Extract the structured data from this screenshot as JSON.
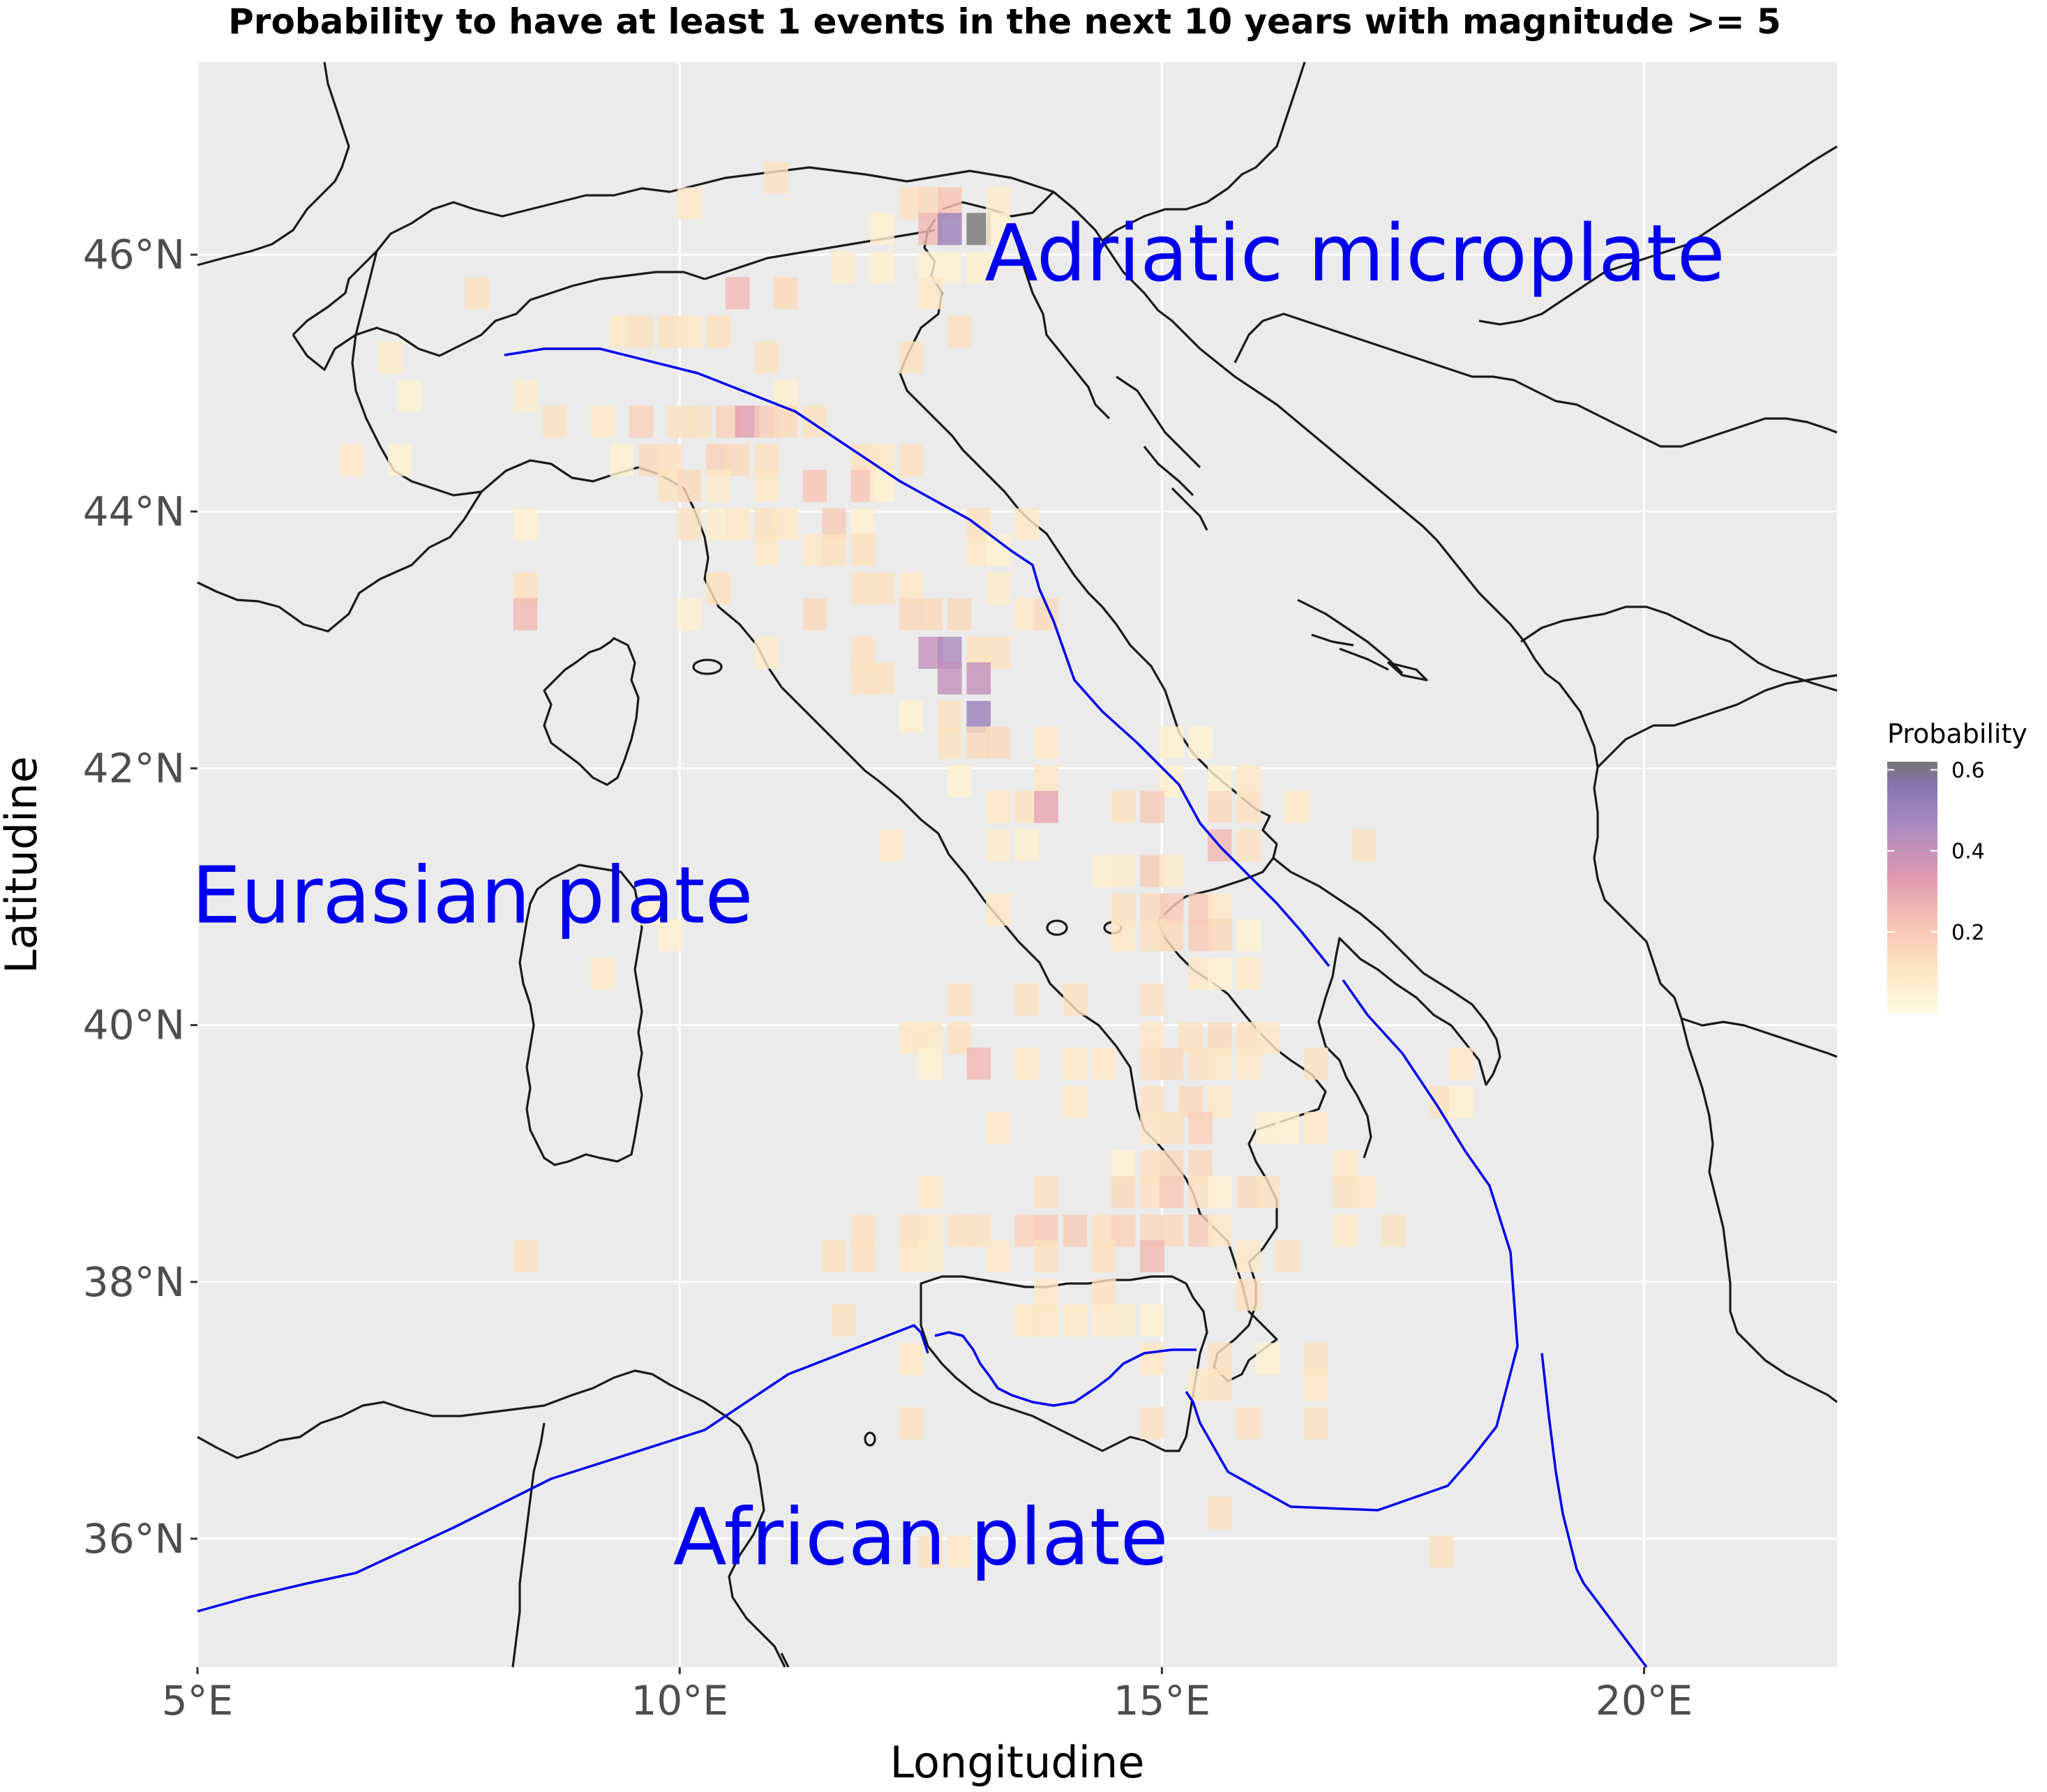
{
  "title": "Probability to have at least  1 events in the next  10 years with magnitude >= 5",
  "colors": {
    "panel_bg": "#ebebeb",
    "grid": "#ffffff",
    "coast": "#1a1a1a",
    "plate_boundary": "#0000ee",
    "plate_label": "#0000ee"
  },
  "axes": {
    "x_title": "Longitudine",
    "y_title": "Latitudine",
    "x_ticks": [
      {
        "value": 5,
        "label": "5°E"
      },
      {
        "value": 10,
        "label": "10°E"
      },
      {
        "value": 15,
        "label": "15°E"
      },
      {
        "value": 20,
        "label": "20°E"
      }
    ],
    "y_ticks": [
      {
        "value": 36,
        "label": "36°N"
      },
      {
        "value": 38,
        "label": "38°N"
      },
      {
        "value": 40,
        "label": "40°N"
      },
      {
        "value": 42,
        "label": "42°N"
      },
      {
        "value": 44,
        "label": "44°N"
      },
      {
        "value": 46,
        "label": "46°N"
      }
    ]
  },
  "legend": {
    "title": "Probability",
    "ticks": [
      {
        "value": 0.2,
        "label": "0.2"
      },
      {
        "value": 0.4,
        "label": "0.4"
      },
      {
        "value": 0.6,
        "label": "0.6"
      }
    ],
    "range": [
      0.0,
      0.62
    ]
  },
  "plate_labels": [
    {
      "text": "Adriatic microplate",
      "lon": 17.0,
      "lat": 45.8
    },
    {
      "text": "Eurasian plate",
      "lon": 7.85,
      "lat": 40.8
    },
    {
      "text": "African plate",
      "lon": 12.5,
      "lat": 35.8
    }
  ],
  "chart_data": {
    "type": "heatmap",
    "title": "Probability to have at least  1 events in the next  10 years with magnitude >= 5",
    "xlabel": "Longitudine",
    "ylabel": "Latitudine",
    "xlim": [
      5.0,
      22.0
    ],
    "ylim": [
      35.0,
      47.5
    ],
    "grid": true,
    "cell_size_deg": 0.25,
    "legend": "right",
    "colorbar": {
      "title": "Probability",
      "min": 0.0,
      "max": 0.62
    },
    "cells": [
      [
        11.0,
        46.6,
        0.12
      ],
      [
        10.1,
        46.4,
        0.1
      ],
      [
        12.4,
        46.4,
        0.12
      ],
      [
        12.6,
        46.4,
        0.15
      ],
      [
        12.8,
        46.4,
        0.22
      ],
      [
        13.3,
        46.4,
        0.08
      ],
      [
        12.1,
        46.2,
        0.05
      ],
      [
        12.6,
        46.2,
        0.25
      ],
      [
        12.8,
        46.2,
        0.5
      ],
      [
        13.1,
        46.2,
        0.62
      ],
      [
        13.3,
        46.2,
        0.05
      ],
      [
        11.7,
        45.9,
        0.08
      ],
      [
        12.1,
        45.9,
        0.06
      ],
      [
        12.6,
        45.9,
        0.05
      ],
      [
        12.8,
        45.9,
        0.05
      ],
      [
        13.1,
        45.9,
        0.06
      ],
      [
        7.9,
        45.7,
        0.12
      ],
      [
        10.6,
        45.7,
        0.25
      ],
      [
        11.1,
        45.7,
        0.15
      ],
      [
        12.6,
        45.7,
        0.1
      ],
      [
        9.4,
        45.4,
        0.1
      ],
      [
        9.6,
        45.4,
        0.12
      ],
      [
        9.9,
        45.4,
        0.12
      ],
      [
        10.1,
        45.4,
        0.1
      ],
      [
        10.4,
        45.4,
        0.12
      ],
      [
        12.9,
        45.4,
        0.12
      ],
      [
        7.0,
        45.2,
        0.08
      ],
      [
        10.9,
        45.2,
        0.12
      ],
      [
        12.4,
        45.2,
        0.12
      ],
      [
        7.2,
        44.9,
        0.05
      ],
      [
        8.4,
        44.9,
        0.08
      ],
      [
        11.1,
        44.9,
        0.06
      ],
      [
        8.7,
        44.7,
        0.12
      ],
      [
        9.2,
        44.7,
        0.1
      ],
      [
        9.6,
        44.7,
        0.18
      ],
      [
        10.0,
        44.7,
        0.12
      ],
      [
        10.2,
        44.7,
        0.12
      ],
      [
        10.5,
        44.7,
        0.18
      ],
      [
        10.7,
        44.7,
        0.32
      ],
      [
        10.9,
        44.7,
        0.2
      ],
      [
        11.1,
        44.7,
        0.15
      ],
      [
        11.4,
        44.7,
        0.12
      ],
      [
        6.6,
        44.4,
        0.1
      ],
      [
        7.1,
        44.4,
        0.05
      ],
      [
        9.4,
        44.4,
        0.05
      ],
      [
        9.7,
        44.4,
        0.15
      ],
      [
        9.9,
        44.4,
        0.12
      ],
      [
        10.4,
        44.4,
        0.18
      ],
      [
        10.6,
        44.4,
        0.15
      ],
      [
        10.9,
        44.4,
        0.12
      ],
      [
        11.9,
        44.4,
        0.12
      ],
      [
        12.1,
        44.4,
        0.1
      ],
      [
        12.4,
        44.4,
        0.12
      ],
      [
        9.9,
        44.2,
        0.12
      ],
      [
        10.1,
        44.2,
        0.15
      ],
      [
        10.4,
        44.2,
        0.08
      ],
      [
        10.9,
        44.2,
        0.1
      ],
      [
        11.4,
        44.2,
        0.22
      ],
      [
        11.9,
        44.2,
        0.22
      ],
      [
        12.1,
        44.2,
        0.05
      ],
      [
        8.4,
        43.9,
        0.05
      ],
      [
        10.1,
        43.9,
        0.12
      ],
      [
        10.4,
        43.9,
        0.08
      ],
      [
        10.6,
        43.9,
        0.1
      ],
      [
        10.9,
        43.9,
        0.12
      ],
      [
        11.1,
        43.9,
        0.1
      ],
      [
        11.6,
        43.9,
        0.2
      ],
      [
        11.9,
        43.9,
        0.05
      ],
      [
        13.1,
        43.9,
        0.12
      ],
      [
        13.6,
        43.9,
        0.1
      ],
      [
        10.9,
        43.7,
        0.1
      ],
      [
        11.4,
        43.7,
        0.1
      ],
      [
        11.6,
        43.7,
        0.12
      ],
      [
        11.9,
        43.7,
        0.12
      ],
      [
        13.1,
        43.7,
        0.1
      ],
      [
        13.3,
        43.7,
        0.05
      ],
      [
        8.4,
        43.4,
        0.12
      ],
      [
        10.4,
        43.4,
        0.12
      ],
      [
        11.9,
        43.4,
        0.12
      ],
      [
        12.1,
        43.4,
        0.12
      ],
      [
        12.4,
        43.4,
        0.1
      ],
      [
        13.3,
        43.4,
        0.08
      ],
      [
        8.4,
        43.2,
        0.25
      ],
      [
        10.1,
        43.2,
        0.06
      ],
      [
        11.4,
        43.2,
        0.15
      ],
      [
        12.4,
        43.2,
        0.15
      ],
      [
        12.6,
        43.2,
        0.15
      ],
      [
        12.9,
        43.2,
        0.15
      ],
      [
        13.6,
        43.2,
        0.1
      ],
      [
        13.8,
        43.2,
        0.15
      ],
      [
        10.9,
        42.9,
        0.08
      ],
      [
        11.9,
        42.9,
        0.12
      ],
      [
        12.6,
        42.9,
        0.4
      ],
      [
        12.8,
        42.9,
        0.45
      ],
      [
        13.1,
        42.9,
        0.12
      ],
      [
        13.3,
        42.9,
        0.12
      ],
      [
        11.9,
        42.7,
        0.12
      ],
      [
        12.1,
        42.7,
        0.12
      ],
      [
        12.8,
        42.7,
        0.4
      ],
      [
        13.1,
        42.7,
        0.4
      ],
      [
        12.4,
        42.4,
        0.05
      ],
      [
        12.8,
        42.4,
        0.12
      ],
      [
        13.1,
        42.4,
        0.5
      ],
      [
        12.8,
        42.2,
        0.12
      ],
      [
        13.1,
        42.2,
        0.15
      ],
      [
        13.3,
        42.2,
        0.15
      ],
      [
        13.8,
        42.2,
        0.1
      ],
      [
        15.1,
        42.2,
        0.05
      ],
      [
        15.4,
        42.2,
        0.05
      ],
      [
        12.9,
        41.9,
        0.05
      ],
      [
        13.8,
        41.9,
        0.1
      ],
      [
        15.1,
        41.9,
        0.05
      ],
      [
        15.6,
        41.9,
        0.05
      ],
      [
        15.9,
        41.9,
        0.1
      ],
      [
        13.3,
        41.7,
        0.1
      ],
      [
        13.6,
        41.7,
        0.12
      ],
      [
        13.8,
        41.7,
        0.3
      ],
      [
        14.6,
        41.7,
        0.12
      ],
      [
        14.9,
        41.7,
        0.2
      ],
      [
        15.6,
        41.7,
        0.15
      ],
      [
        15.9,
        41.7,
        0.12
      ],
      [
        16.4,
        41.7,
        0.1
      ],
      [
        12.2,
        41.4,
        0.1
      ],
      [
        13.3,
        41.4,
        0.08
      ],
      [
        13.6,
        41.4,
        0.06
      ],
      [
        15.6,
        41.4,
        0.25
      ],
      [
        15.9,
        41.4,
        0.12
      ],
      [
        17.1,
        41.4,
        0.12
      ],
      [
        14.4,
        41.2,
        0.06
      ],
      [
        14.6,
        41.2,
        0.08
      ],
      [
        14.9,
        41.2,
        0.2
      ],
      [
        15.1,
        41.2,
        0.08
      ],
      [
        9.7,
        40.9,
        0.05
      ],
      [
        13.3,
        40.9,
        0.1
      ],
      [
        14.6,
        40.9,
        0.12
      ],
      [
        14.9,
        40.9,
        0.15
      ],
      [
        15.1,
        40.9,
        0.2
      ],
      [
        15.4,
        40.9,
        0.2
      ],
      [
        15.6,
        40.9,
        0.1
      ],
      [
        9.9,
        40.7,
        0.05
      ],
      [
        14.6,
        40.7,
        0.1
      ],
      [
        14.9,
        40.7,
        0.12
      ],
      [
        15.1,
        40.7,
        0.15
      ],
      [
        15.4,
        40.7,
        0.2
      ],
      [
        15.6,
        40.7,
        0.15
      ],
      [
        15.9,
        40.7,
        0.05
      ],
      [
        9.2,
        40.4,
        0.1
      ],
      [
        15.4,
        40.4,
        0.1
      ],
      [
        15.6,
        40.4,
        0.05
      ],
      [
        15.9,
        40.4,
        0.1
      ],
      [
        12.9,
        40.2,
        0.12
      ],
      [
        13.6,
        40.2,
        0.12
      ],
      [
        14.1,
        40.2,
        0.12
      ],
      [
        14.9,
        40.2,
        0.12
      ],
      [
        12.4,
        39.9,
        0.1
      ],
      [
        12.6,
        39.9,
        0.1
      ],
      [
        12.9,
        39.9,
        0.12
      ],
      [
        14.9,
        39.9,
        0.1
      ],
      [
        15.3,
        39.9,
        0.12
      ],
      [
        15.6,
        39.9,
        0.15
      ],
      [
        15.9,
        39.9,
        0.12
      ],
      [
        16.1,
        39.9,
        0.1
      ],
      [
        12.6,
        39.7,
        0.05
      ],
      [
        13.1,
        39.7,
        0.25
      ],
      [
        13.6,
        39.7,
        0.1
      ],
      [
        14.1,
        39.7,
        0.1
      ],
      [
        14.4,
        39.7,
        0.1
      ],
      [
        14.9,
        39.7,
        0.12
      ],
      [
        15.1,
        39.7,
        0.15
      ],
      [
        15.4,
        39.7,
        0.12
      ],
      [
        15.6,
        39.7,
        0.1
      ],
      [
        15.9,
        39.7,
        0.1
      ],
      [
        16.6,
        39.7,
        0.12
      ],
      [
        18.1,
        39.7,
        0.1
      ],
      [
        14.1,
        39.4,
        0.1
      ],
      [
        14.9,
        39.4,
        0.12
      ],
      [
        15.3,
        39.4,
        0.15
      ],
      [
        15.6,
        39.4,
        0.1
      ],
      [
        17.9,
        39.4,
        0.12
      ],
      [
        18.1,
        39.4,
        0.05
      ],
      [
        13.3,
        39.2,
        0.1
      ],
      [
        14.9,
        39.2,
        0.1
      ],
      [
        15.1,
        39.2,
        0.12
      ],
      [
        15.4,
        39.2,
        0.18
      ],
      [
        16.1,
        39.2,
        0.06
      ],
      [
        16.3,
        39.2,
        0.05
      ],
      [
        16.6,
        39.2,
        0.1
      ],
      [
        14.6,
        38.9,
        0.05
      ],
      [
        14.9,
        38.9,
        0.12
      ],
      [
        15.1,
        38.9,
        0.15
      ],
      [
        15.4,
        38.9,
        0.15
      ],
      [
        16.9,
        38.9,
        0.1
      ],
      [
        12.6,
        38.7,
        0.1
      ],
      [
        13.8,
        38.7,
        0.12
      ],
      [
        14.6,
        38.7,
        0.15
      ],
      [
        14.9,
        38.7,
        0.12
      ],
      [
        15.1,
        38.7,
        0.2
      ],
      [
        15.4,
        38.7,
        0.12
      ],
      [
        15.6,
        38.7,
        0.05
      ],
      [
        15.9,
        38.7,
        0.15
      ],
      [
        16.1,
        38.7,
        0.12
      ],
      [
        16.9,
        38.7,
        0.12
      ],
      [
        17.1,
        38.7,
        0.1
      ],
      [
        11.9,
        38.4,
        0.12
      ],
      [
        12.4,
        38.4,
        0.12
      ],
      [
        12.6,
        38.4,
        0.1
      ],
      [
        12.9,
        38.4,
        0.12
      ],
      [
        13.1,
        38.4,
        0.12
      ],
      [
        13.6,
        38.4,
        0.18
      ],
      [
        13.8,
        38.4,
        0.2
      ],
      [
        14.1,
        38.4,
        0.2
      ],
      [
        14.4,
        38.4,
        0.12
      ],
      [
        14.6,
        38.4,
        0.18
      ],
      [
        14.9,
        38.4,
        0.15
      ],
      [
        15.1,
        38.4,
        0.15
      ],
      [
        15.4,
        38.4,
        0.2
      ],
      [
        15.6,
        38.4,
        0.1
      ],
      [
        16.9,
        38.4,
        0.1
      ],
      [
        17.4,
        38.4,
        0.12
      ],
      [
        8.4,
        38.2,
        0.12
      ],
      [
        11.6,
        38.2,
        0.12
      ],
      [
        11.9,
        38.2,
        0.12
      ],
      [
        12.4,
        38.2,
        0.1
      ],
      [
        12.6,
        38.2,
        0.08
      ],
      [
        13.3,
        38.2,
        0.1
      ],
      [
        13.8,
        38.2,
        0.12
      ],
      [
        14.4,
        38.2,
        0.12
      ],
      [
        14.9,
        38.2,
        0.25
      ],
      [
        15.9,
        38.2,
        0.1
      ],
      [
        16.3,
        38.2,
        0.12
      ],
      [
        13.8,
        37.9,
        0.1
      ],
      [
        14.4,
        37.9,
        0.12
      ],
      [
        15.9,
        37.9,
        0.12
      ],
      [
        11.7,
        37.7,
        0.12
      ],
      [
        13.6,
        37.7,
        0.1
      ],
      [
        13.8,
        37.7,
        0.1
      ],
      [
        14.1,
        37.7,
        0.1
      ],
      [
        14.4,
        37.7,
        0.08
      ],
      [
        14.6,
        37.7,
        0.08
      ],
      [
        14.9,
        37.7,
        0.05
      ],
      [
        12.4,
        37.4,
        0.1
      ],
      [
        14.9,
        37.4,
        0.1
      ],
      [
        15.6,
        37.4,
        0.12
      ],
      [
        16.1,
        37.4,
        0.05
      ],
      [
        16.6,
        37.4,
        0.12
      ],
      [
        15.4,
        37.2,
        0.1
      ],
      [
        15.6,
        37.2,
        0.12
      ],
      [
        16.6,
        37.2,
        0.1
      ],
      [
        12.4,
        36.9,
        0.12
      ],
      [
        14.9,
        36.9,
        0.12
      ],
      [
        15.9,
        36.9,
        0.12
      ],
      [
        16.6,
        36.9,
        0.12
      ],
      [
        15.6,
        36.2,
        0.12
      ],
      [
        12.6,
        35.9,
        0.12
      ],
      [
        12.9,
        35.9,
        0.1
      ],
      [
        17.9,
        35.9,
        0.12
      ]
    ]
  }
}
